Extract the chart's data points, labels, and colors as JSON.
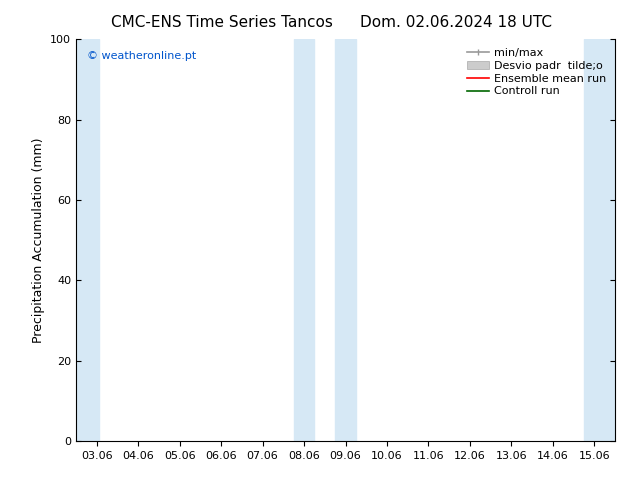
{
  "title_left": "CMC-ENS Time Series Tancos",
  "title_right": "Dom. 02.06.2024 18 UTC",
  "ylabel": "Precipitation Accumulation (mm)",
  "ylim": [
    0,
    100
  ],
  "yticks": [
    0,
    20,
    40,
    60,
    80,
    100
  ],
  "x_tick_labels": [
    "03.06",
    "04.06",
    "05.06",
    "06.06",
    "07.06",
    "08.06",
    "09.06",
    "10.06",
    "11.06",
    "12.06",
    "13.06",
    "14.06",
    "15.06"
  ],
  "x_tick_positions": [
    0,
    1,
    2,
    3,
    4,
    5,
    6,
    7,
    8,
    9,
    10,
    11,
    12
  ],
  "xlim": [
    -0.5,
    12.5
  ],
  "shade_regions": [
    {
      "x_start": -0.5,
      "x_end": 0.05
    },
    {
      "x_start": 4.75,
      "x_end": 5.25
    },
    {
      "x_start": 5.75,
      "x_end": 6.25
    },
    {
      "x_start": 11.75,
      "x_end": 12.25
    },
    {
      "x_start": 12.25,
      "x_end": 12.5
    }
  ],
  "shade_color": "#d6e8f5",
  "watermark_text": "© weatheronline.pt",
  "watermark_color": "#0055cc",
  "bg_color": "#ffffff",
  "spine_color": "#000000",
  "title_fontsize": 11,
  "tick_fontsize": 8,
  "ylabel_fontsize": 9,
  "legend_fontsize": 8
}
